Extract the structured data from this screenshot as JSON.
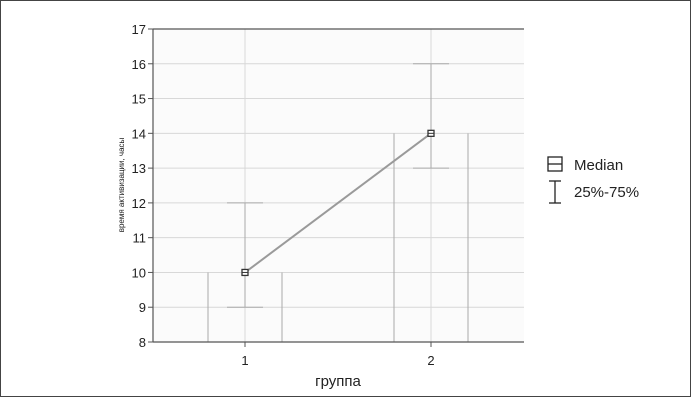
{
  "chart_data": {
    "type": "line",
    "xlabel": "группа",
    "ylabel": "время активизации, часы",
    "categories": [
      "1",
      "2"
    ],
    "ylim": [
      8,
      17
    ],
    "yticks": [
      8,
      9,
      10,
      11,
      12,
      13,
      14,
      15,
      16,
      17
    ],
    "grid": true,
    "legend_position": "right",
    "legend": [
      {
        "label": "Median",
        "icon": "median-square-icon"
      },
      {
        "label": "25%-75%",
        "icon": "whisker-icon"
      }
    ],
    "median": [
      10,
      14
    ],
    "q25": [
      9,
      13
    ],
    "q75": [
      12,
      16
    ],
    "min": [
      8,
      8
    ],
    "max": [
      10,
      14
    ],
    "colors": {
      "line": "#9a9a9a",
      "grid": "#d8d8d8",
      "axis": "#555555",
      "whisker": "#aaaaaa"
    }
  }
}
